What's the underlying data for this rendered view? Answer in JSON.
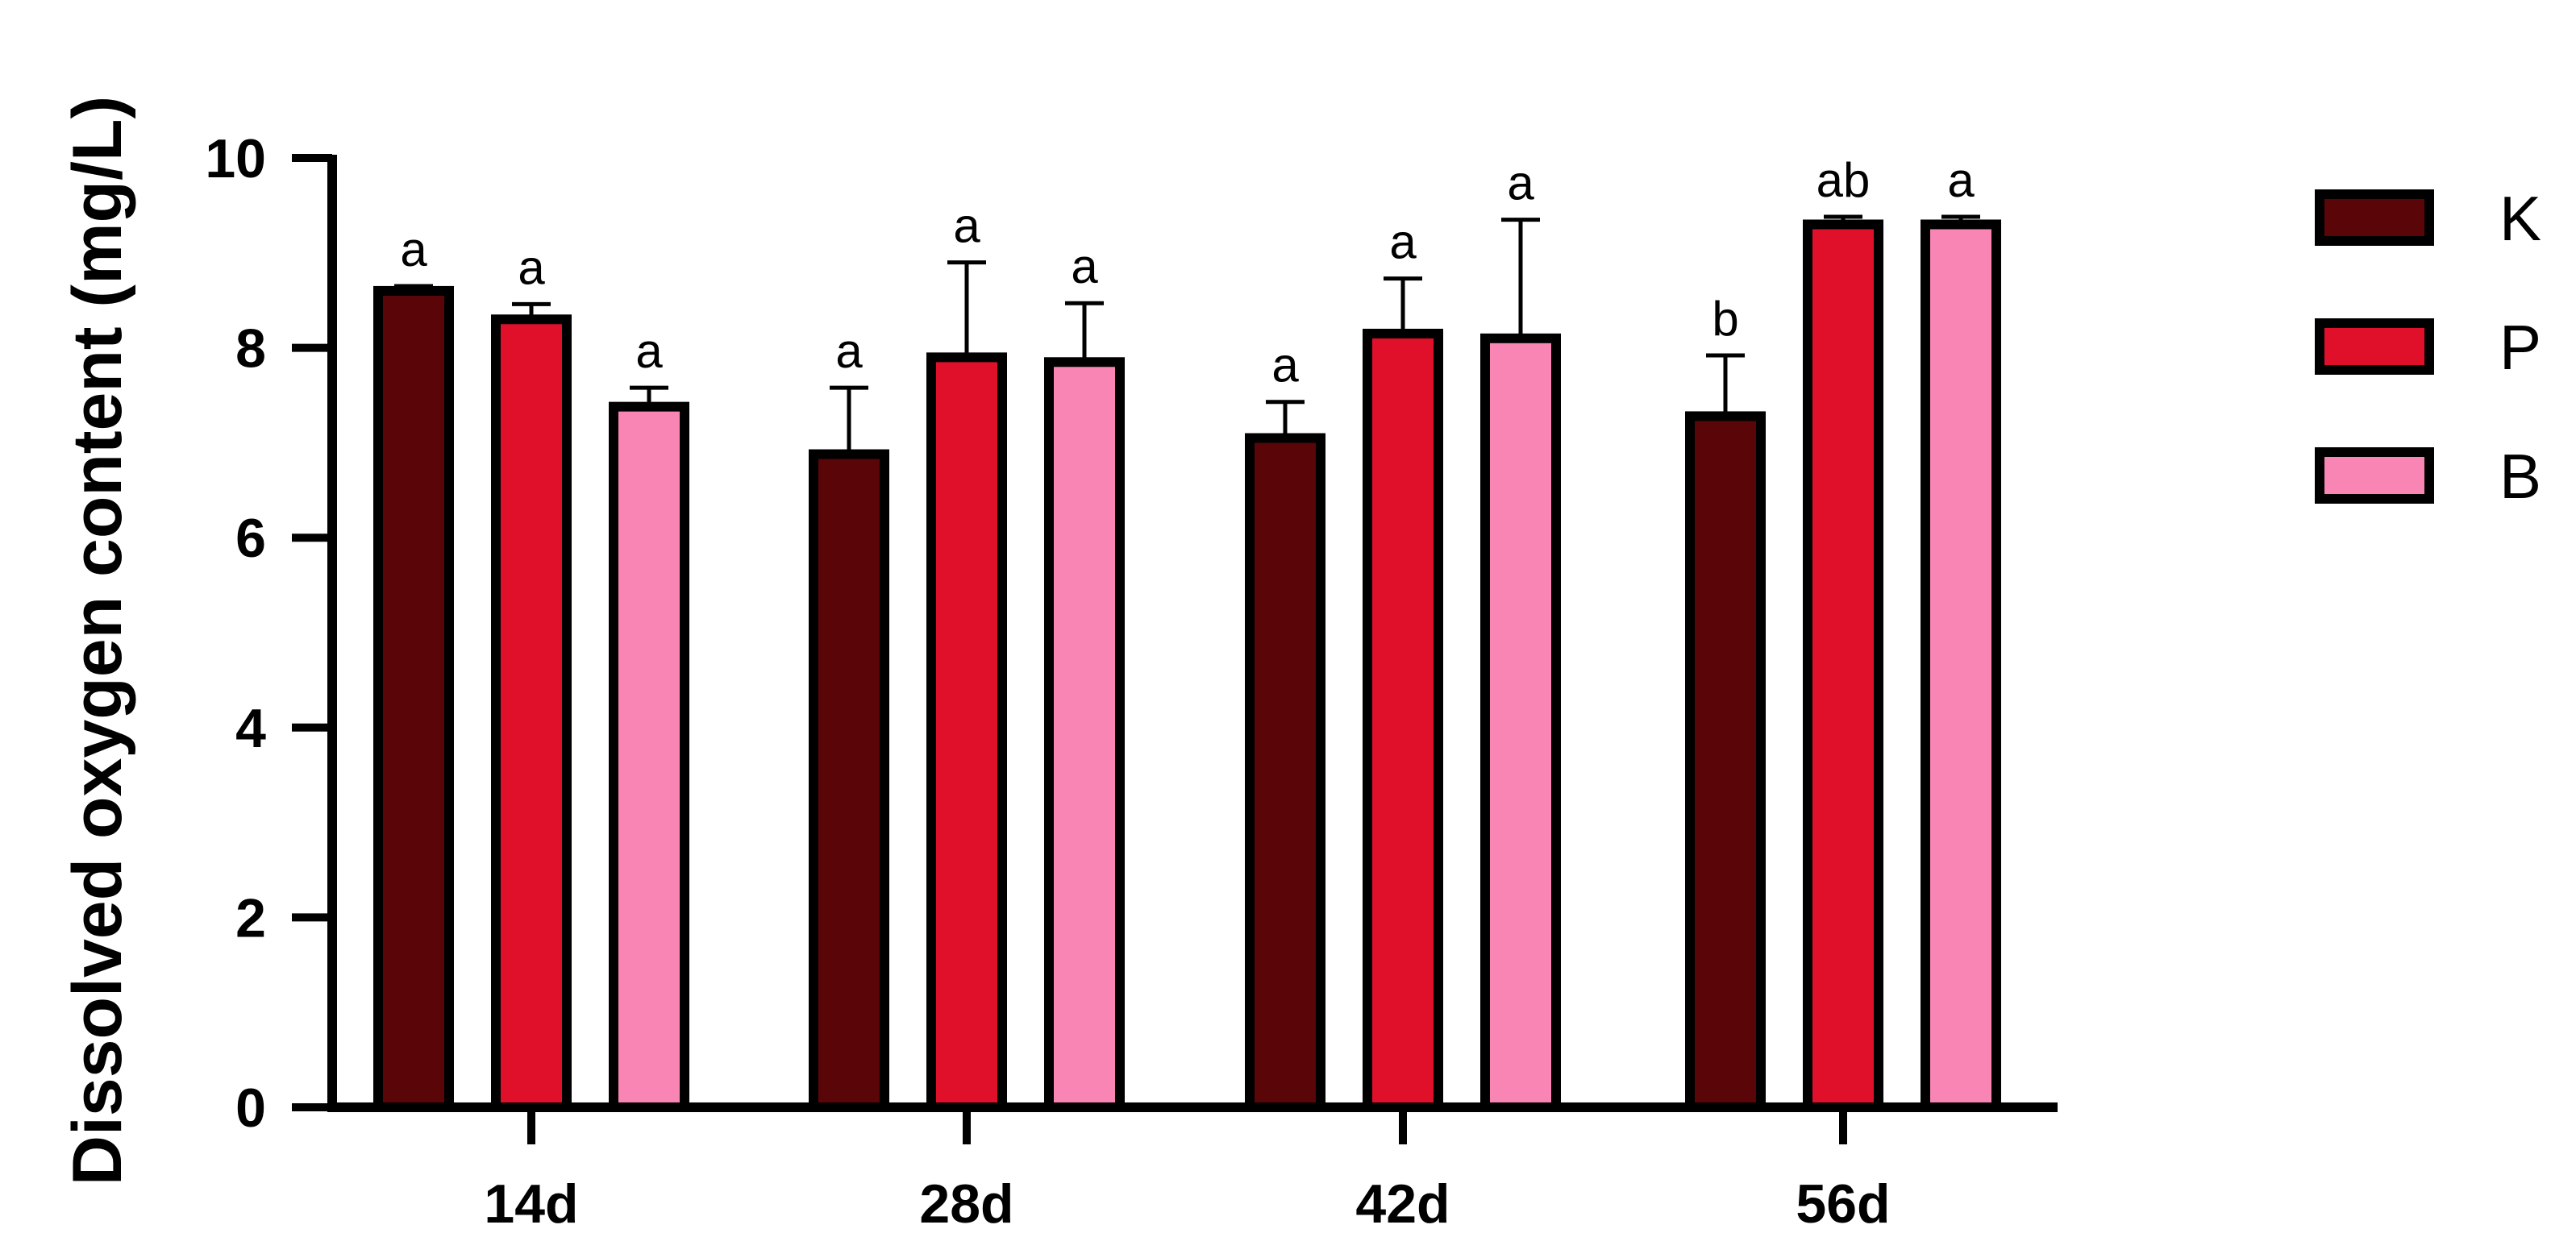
{
  "chart_data": {
    "type": "bar",
    "title": "",
    "xlabel": "",
    "ylabel": "Dissolved oxygen content (mg/L)",
    "ylim": [
      0,
      10
    ],
    "yticks": [
      0,
      2,
      4,
      6,
      8,
      10
    ],
    "categories": [
      "14d",
      "28d",
      "42d",
      "56d"
    ],
    "grid": false,
    "legend_position": "right",
    "series": [
      {
        "name": "K",
        "color": "#5a0508",
        "values": [
          8.6,
          6.88,
          7.05,
          7.28
        ],
        "errors": [
          0.05,
          0.7,
          0.38,
          0.64
        ],
        "significance": [
          "a",
          "a",
          "a",
          "b"
        ]
      },
      {
        "name": "P",
        "color": "#e0102a",
        "values": [
          8.3,
          7.9,
          8.15,
          9.3
        ],
        "errors": [
          0.16,
          1.0,
          0.58,
          0.08
        ],
        "significance": [
          "a",
          "a",
          "a",
          "ab"
        ]
      },
      {
        "name": "B",
        "color": "#f985b4",
        "values": [
          7.38,
          7.85,
          8.1,
          9.3
        ],
        "errors": [
          0.2,
          0.62,
          1.25,
          0.08
        ],
        "significance": [
          "a",
          "a",
          "a",
          "a"
        ]
      }
    ]
  }
}
